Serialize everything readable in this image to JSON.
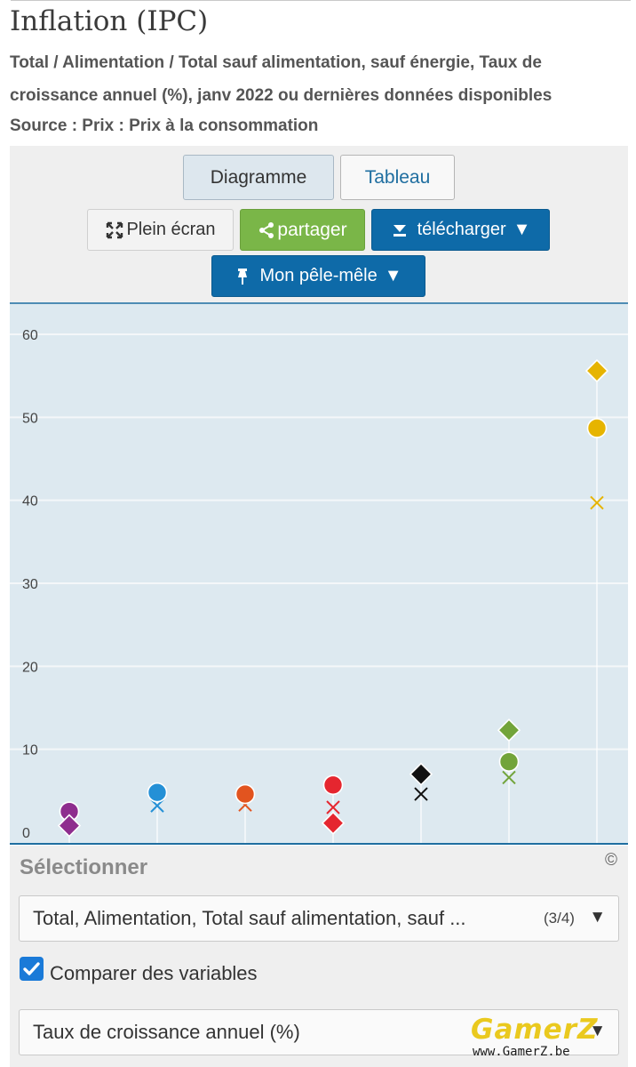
{
  "header": {
    "title": "Inflation (IPC)",
    "subtitle_line1": "Total / Alimentation / Total sauf alimentation, sauf énergie, Taux de",
    "subtitle_line2": "croissance annuel (%), janv 2022 ou dernières données disponibles",
    "source": "Source : Prix : Prix à la consommation"
  },
  "toolbar": {
    "view_chart": "Diagramme",
    "view_table": "Tableau",
    "fullscreen": "Plein écran",
    "share": "partager",
    "download": "télécharger",
    "my_board": "Mon pêle-mêle"
  },
  "colors": {
    "plot_background": "#dde9f0",
    "gridline": "#f4f7f9",
    "axis": "#1f6ea0",
    "share_green": "#7ab648",
    "action_blue": "#0e6aa8"
  },
  "chart_data": {
    "type": "scatter",
    "title": "",
    "xlabel": "",
    "ylabel": "",
    "ylim": [
      0,
      60
    ],
    "yticks": [
      0,
      10,
      20,
      30,
      40,
      50,
      60
    ],
    "grid": true,
    "legend": "none",
    "marker_meaning": {
      "circle": "Total",
      "diamond": "Alimentation",
      "x": "Total sauf alimentation, sauf énergie"
    },
    "categories": [
      {
        "color": "#8e2d8e",
        "circle": 2.5,
        "diamond": 0.8,
        "x": null
      },
      {
        "color": "#2490d6",
        "circle": 4.8,
        "diamond": null,
        "x": 3.2
      },
      {
        "color": "#e2541f",
        "circle": 4.6,
        "diamond": null,
        "x": 3.3
      },
      {
        "color": "#e5262f",
        "circle": 5.7,
        "diamond": 1.1,
        "x": 3.0
      },
      {
        "color": "#111111",
        "circle": null,
        "diamond": 7.0,
        "x": 4.6
      },
      {
        "color": "#72a43a",
        "circle": 8.5,
        "diamond": 12.3,
        "x": 6.6
      },
      {
        "color": "#e6b400",
        "circle": 48.7,
        "diamond": 55.6,
        "x": 39.7
      }
    ]
  },
  "copyright_icon": "©",
  "selector": {
    "title": "Sélectionner",
    "variables_text": "Total, Alimentation, Total sauf alimentation, sauf ...",
    "variables_count": "(3/4)",
    "compare_checked": true,
    "compare_label": "Comparer des variables",
    "measure_text": "Taux de croissance annuel (%)",
    "caret": "▼"
  },
  "watermark": {
    "main": "GamerZ",
    "sub": "www.GamerZ.be"
  }
}
